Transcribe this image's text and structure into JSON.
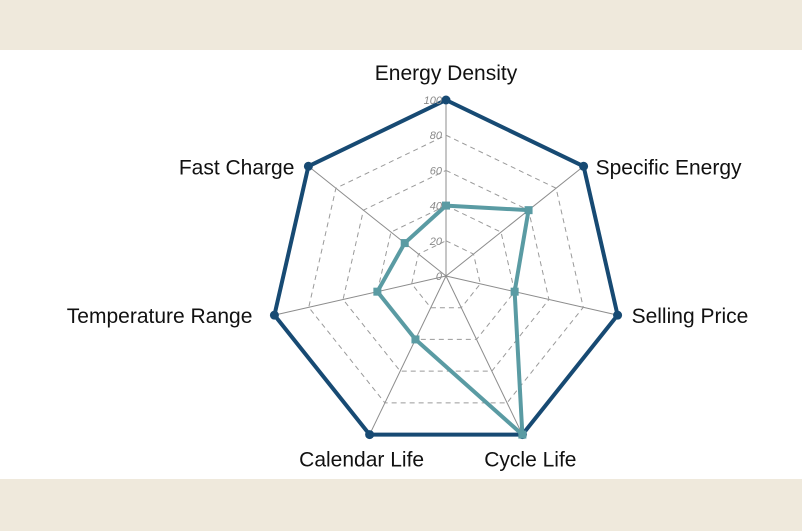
{
  "chart_data": {
    "type": "radar",
    "axes": [
      "Energy Density",
      "Specific Energy",
      "Selling Price",
      "Cycle Life",
      "Calendar Life",
      "Temperature Range",
      "Fast Charge"
    ],
    "r_ticks": [
      "0",
      "20",
      "40",
      "60",
      "80",
      "100"
    ],
    "rlim": [
      0,
      100
    ],
    "grid": true,
    "series": [
      {
        "values": [
          100,
          100,
          100,
          100,
          100,
          100,
          100
        ],
        "color": "#174a73"
      },
      {
        "values": [
          40,
          60,
          40,
          100,
          40,
          40,
          30
        ],
        "color": "#5a9ba3"
      }
    ]
  }
}
